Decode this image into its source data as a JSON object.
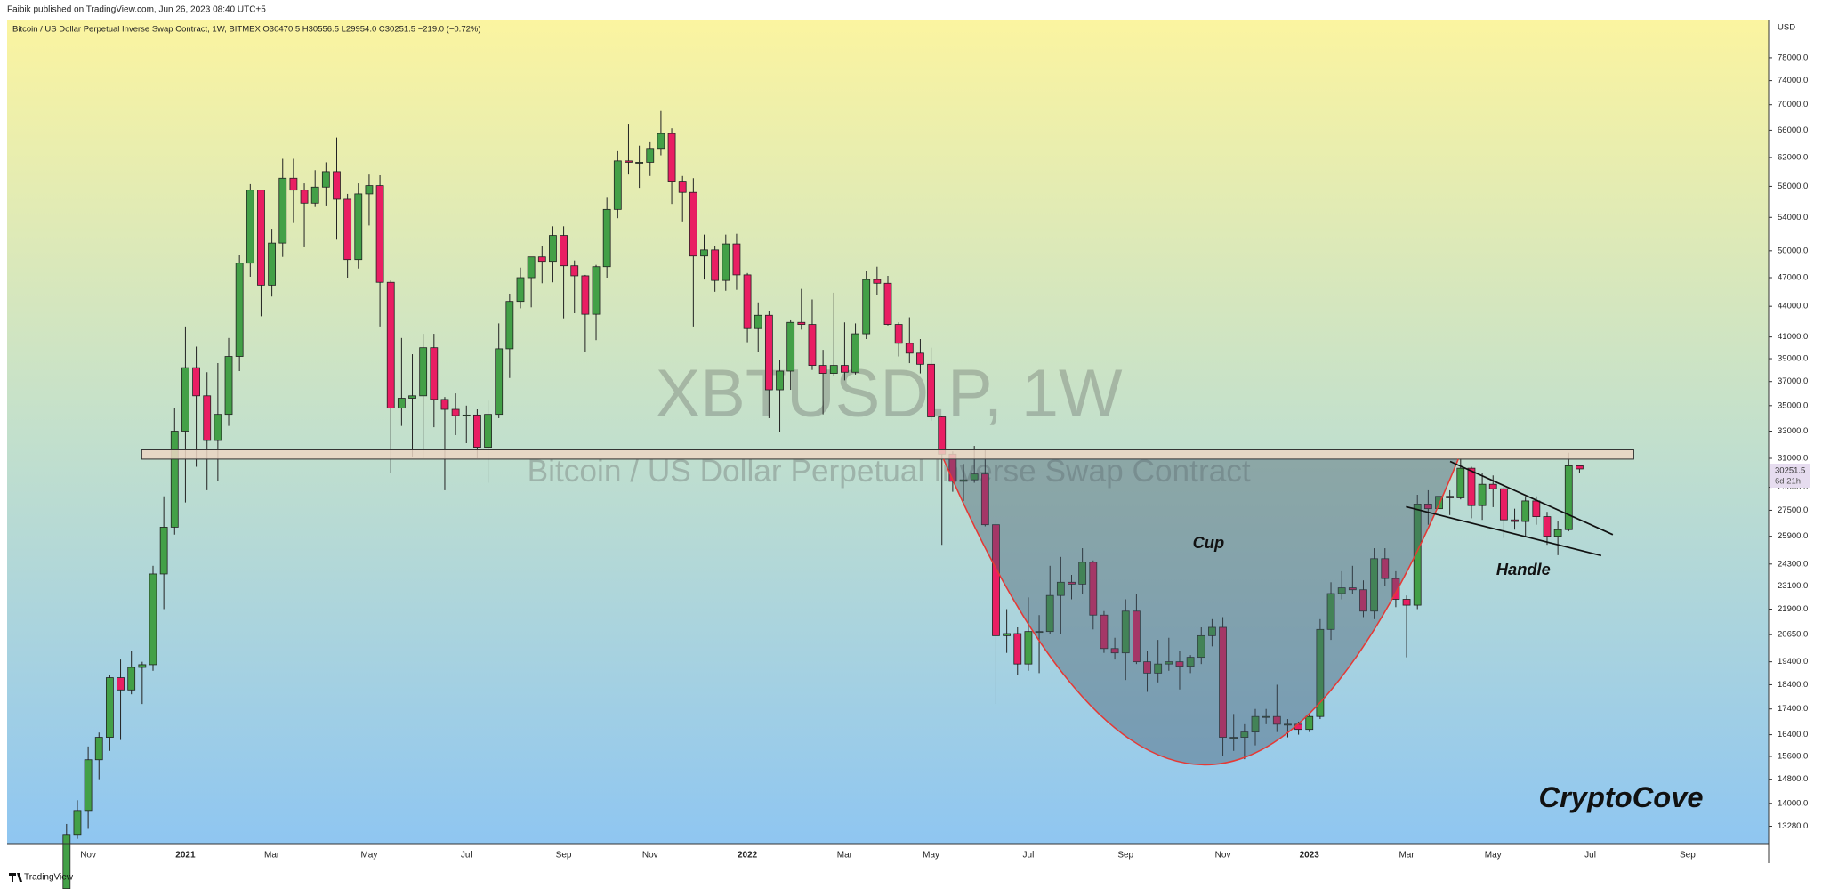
{
  "header": {
    "publisher": "Faibik published on TradingView.com, Jun 26, 2023 08:40 UTC+5",
    "brand": "TradingView"
  },
  "chart_data": {
    "type": "candlestick",
    "legend_text": "Bitcoin / US Dollar Perpetual Inverse Swap Contract, 1W, BITMEX  O30470.5  H30556.5  L29954.0  C30251.5  −219.0 (−0.72%)",
    "watermark": "XBTUSD.P, 1W",
    "watermark_subtitle": "Bitcoin / US Dollar Perpetual Inverse Swap Contract",
    "y_axis_label": "USD",
    "last_price": 30251.5,
    "countdown": "6d 21h",
    "annotations": {
      "cup": "Cup",
      "handle": "Handle",
      "signature": "CryptoCove"
    },
    "log_scale": true,
    "up_color": "#43a047",
    "down_color": "#e91e63",
    "ylim": [
      12760,
      85000
    ],
    "yticks": [
      {
        "value": 13280,
        "label": "13280.0"
      },
      {
        "value": 14000,
        "label": "14000.0"
      },
      {
        "value": 14800,
        "label": "14800.0"
      },
      {
        "value": 15600,
        "label": "15600.0"
      },
      {
        "value": 16400,
        "label": "16400.0"
      },
      {
        "value": 17400,
        "label": "17400.0"
      },
      {
        "value": 18400,
        "label": "18400.0"
      },
      {
        "value": 19400,
        "label": "19400.0"
      },
      {
        "value": 20650,
        "label": "20650.0"
      },
      {
        "value": 21900,
        "label": "21900.0"
      },
      {
        "value": 23100,
        "label": "23100.0"
      },
      {
        "value": 24300,
        "label": "24300.0"
      },
      {
        "value": 25900,
        "label": "25900.0"
      },
      {
        "value": 27500,
        "label": "27500.0"
      },
      {
        "value": 29000,
        "label": "29000.0"
      },
      {
        "value": 31000,
        "label": "31000.0"
      },
      {
        "value": 33000,
        "label": "33000.0"
      },
      {
        "value": 35000,
        "label": "35000.0"
      },
      {
        "value": 37000,
        "label": "37000.0"
      },
      {
        "value": 39000,
        "label": "39000.0"
      },
      {
        "value": 41000,
        "label": "41000.0"
      },
      {
        "value": 44000,
        "label": "44000.0"
      },
      {
        "value": 47000,
        "label": "47000.0"
      },
      {
        "value": 50000,
        "label": "50000.0"
      },
      {
        "value": 54000,
        "label": "54000.0"
      },
      {
        "value": 58000,
        "label": "58000.0"
      },
      {
        "value": 62000,
        "label": "62000.0"
      },
      {
        "value": 66000,
        "label": "66000.0"
      },
      {
        "value": 70000,
        "label": "70000.0"
      },
      {
        "value": 74000,
        "label": "74000.0"
      },
      {
        "value": 78000,
        "label": "78000.0"
      }
    ],
    "categories": [
      null,
      null,
      null,
      null,
      null,
      null,
      null,
      "Nov",
      null,
      null,
      null,
      null,
      null,
      null,
      null,
      null,
      "2021",
      null,
      null,
      null,
      null,
      null,
      null,
      null,
      "Mar",
      null,
      null,
      null,
      null,
      null,
      null,
      null,
      null,
      "May",
      null,
      null,
      null,
      null,
      null,
      null,
      null,
      null,
      "Jul",
      null,
      null,
      null,
      null,
      null,
      null,
      null,
      null,
      "Sep",
      null,
      null,
      null,
      null,
      null,
      null,
      null,
      "Nov",
      null,
      null,
      null,
      null,
      null,
      null,
      null,
      null,
      "2022",
      null,
      null,
      null,
      null,
      null,
      null,
      null,
      null,
      "Mar",
      null,
      null,
      null,
      null,
      null,
      null,
      null,
      "May",
      null,
      null,
      null,
      null,
      null,
      null,
      null,
      null,
      "Jul",
      null,
      null,
      null,
      null,
      null,
      null,
      null,
      null,
      "Sep",
      null,
      null,
      null,
      null,
      null,
      null,
      null,
      null,
      "Nov",
      null,
      null,
      null,
      null,
      null,
      null,
      null,
      "2023",
      null,
      null,
      null,
      null,
      null,
      null,
      null,
      null,
      "Mar",
      null,
      null,
      null,
      null,
      null,
      null,
      null,
      "May",
      null,
      null,
      null,
      null,
      null,
      null,
      null,
      null,
      "Jul",
      null,
      null,
      null,
      null,
      null,
      null,
      null,
      null,
      "Sep",
      null,
      null,
      null,
      null,
      null,
      null,
      null
    ],
    "open": [
      null,
      null,
      null,
      null,
      null,
      11500,
      13030,
      13770,
      15480,
      16300,
      18700,
      18180,
      19150,
      19270,
      23750,
      26450,
      33000,
      38200,
      35800,
      32300,
      34300,
      39200,
      48600,
      57500,
      46200,
      50900,
      59100,
      57500,
      55800,
      57900,
      60000,
      56300,
      49000,
      57000,
      58100,
      46500,
      34800,
      35600,
      35800,
      40000,
      35500,
      34700,
      34200,
      34250,
      31800,
      34300,
      39900,
      44500,
      47000,
      49300,
      48800,
      51800,
      48300,
      47200,
      43200,
      48200,
      55000,
      61500,
      61300,
      61300,
      63300,
      65500,
      58700,
      57200,
      49400,
      50100,
      46700,
      50800,
      47300,
      41800,
      43100,
      36300,
      37900,
      42400,
      42200,
      38400,
      37700,
      38400,
      37800,
      41300,
      46800,
      46400,
      42200,
      40400,
      39500,
      38500,
      34100,
      31300,
      29400,
      29500,
      29900,
      26600,
      20600,
      20700,
      19300,
      20800,
      20800,
      22600,
      23300,
      23200,
      24400,
      21600,
      20000,
      19800,
      21800,
      19400,
      18900,
      19300,
      19400,
      19200,
      19600,
      20600,
      21000,
      16300,
      16300,
      16500,
      17100,
      17100,
      16800,
      16800,
      16600,
      17100,
      20900,
      22700,
      23000,
      22900,
      21800,
      24600,
      23500,
      22400,
      22100,
      27900,
      27600,
      28400,
      28300,
      30300,
      27800,
      29200,
      28900,
      26900,
      26800,
      28100,
      27100,
      25900,
      26300,
      30470.5,
      null,
      null,
      null,
      null,
      null,
      null,
      null,
      null,
      null,
      null,
      null,
      null,
      null,
      null,
      null,
      null,
      null
    ],
    "high": [
      null,
      null,
      null,
      null,
      null,
      13350,
      14100,
      15960,
      16480,
      18800,
      19500,
      19900,
      19400,
      24200,
      28400,
      34800,
      42000,
      40100,
      37800,
      38600,
      40900,
      49500,
      58300,
      57500,
      52600,
      61800,
      61800,
      58400,
      60200,
      61300,
      64900,
      57000,
      58400,
      59600,
      59500,
      46700,
      40900,
      39400,
      41300,
      41300,
      35700,
      36000,
      35000,
      34700,
      35400,
      42300,
      45300,
      48100,
      49300,
      50500,
      52900,
      52900,
      48900,
      47300,
      48400,
      56600,
      62900,
      67000,
      63700,
      64200,
      69000,
      66300,
      59400,
      59100,
      51900,
      50600,
      51900,
      52000,
      47500,
      44400,
      43500,
      38900,
      42600,
      45800,
      44700,
      39800,
      45400,
      42400,
      42300,
      47700,
      48200,
      47200,
      42400,
      42900,
      40800,
      40000,
      34200,
      31500,
      30600,
      31900,
      31700,
      26900,
      21900,
      21000,
      22500,
      21600,
      24200,
      24700,
      23700,
      25200,
      24500,
      21800,
      20500,
      22400,
      22700,
      19900,
      20400,
      20500,
      19900,
      19700,
      21000,
      21400,
      21500,
      17200,
      16800,
      17400,
      17400,
      18400,
      17000,
      16900,
      17200,
      21400,
      23300,
      23900,
      24200,
      23400,
      25200,
      25200,
      23900,
      22600,
      28500,
      28800,
      29200,
      28800,
      31000,
      30400,
      30000,
      29800,
      29200,
      27600,
      28400,
      28400,
      27400,
      26800,
      31400,
      30556.5,
      null,
      null,
      null,
      null,
      null,
      null,
      null,
      null,
      null,
      null,
      null,
      null,
      null,
      null,
      null,
      null,
      null
    ],
    "low": [
      null,
      null,
      null,
      null,
      null,
      11400,
      12900,
      13200,
      14800,
      15800,
      16200,
      18000,
      17600,
      19000,
      21900,
      26000,
      28000,
      30400,
      28800,
      29400,
      33400,
      37900,
      47100,
      43000,
      45000,
      49300,
      53300,
      50400,
      55300,
      55500,
      51300,
      47000,
      48000,
      53000,
      42000,
      30000,
      33400,
      31100,
      31000,
      33300,
      28800,
      32700,
      32100,
      31000,
      29300,
      34000,
      37300,
      43800,
      43900,
      46400,
      46500,
      42800,
      43300,
      39600,
      40700,
      47000,
      53900,
      59600,
      57800,
      59400,
      62300,
      55700,
      53500,
      42000,
      46800,
      45500,
      45600,
      45700,
      40500,
      39600,
      34000,
      32900,
      36300,
      41700,
      38000,
      34300,
      37500,
      37100,
      37600,
      40800,
      45200,
      42100,
      39200,
      38600,
      37700,
      33800,
      25400,
      28700,
      28100,
      29300,
      26500,
      17600,
      19800,
      18800,
      19000,
      18900,
      20700,
      20700,
      22400,
      22700,
      20900,
      19800,
      19500,
      18600,
      19300,
      18100,
      18500,
      19000,
      18200,
      18900,
      19300,
      20100,
      15600,
      15800,
      15500,
      16000,
      16800,
      16500,
      16300,
      16400,
      16500,
      17000,
      20400,
      22400,
      22700,
      21500,
      21400,
      23100,
      22000,
      19600,
      21900,
      26600,
      26600,
      27200,
      28200,
      27000,
      26900,
      27700,
      25800,
      26300,
      25900,
      26600,
      25400,
      24800,
      26200,
      29954,
      null,
      null,
      null,
      null,
      null,
      null,
      null,
      null,
      null,
      null,
      null,
      null,
      null,
      null,
      null,
      null,
      null
    ],
    "close": [
      null,
      null,
      null,
      null,
      null,
      13030,
      13770,
      15480,
      16300,
      18700,
      18180,
      19150,
      19270,
      23750,
      26450,
      33000,
      38200,
      35800,
      32300,
      34300,
      39200,
      48600,
      57500,
      46200,
      50900,
      59100,
      57500,
      55800,
      57900,
      60000,
      56300,
      49000,
      57000,
      58100,
      46500,
      34800,
      35600,
      35800,
      40000,
      35500,
      34700,
      34200,
      34250,
      31800,
      34300,
      39900,
      44500,
      47000,
      49300,
      48800,
      51800,
      48300,
      47200,
      43200,
      48200,
      55000,
      61500,
      61300,
      61300,
      63300,
      65500,
      58700,
      57200,
      49400,
      50100,
      46700,
      50800,
      47300,
      41800,
      43100,
      36300,
      37900,
      42400,
      42200,
      38400,
      37700,
      38400,
      37800,
      41300,
      46800,
      46400,
      42200,
      40400,
      39500,
      38500,
      34100,
      31300,
      29400,
      29500,
      29900,
      26600,
      20600,
      20700,
      19300,
      20800,
      20800,
      22600,
      23300,
      23200,
      24400,
      21600,
      20000,
      19800,
      21800,
      19400,
      18900,
      19300,
      19400,
      19200,
      19600,
      20600,
      21000,
      16300,
      16300,
      16500,
      17100,
      17100,
      16800,
      16800,
      16600,
      17100,
      20900,
      22700,
      23000,
      22900,
      21800,
      24600,
      23500,
      22400,
      22100,
      27900,
      27600,
      28400,
      28300,
      30300,
      27800,
      29200,
      28900,
      26900,
      26800,
      28100,
      27100,
      25900,
      26300,
      30470.5,
      30251.5,
      null,
      null,
      null,
      null,
      null,
      null,
      null,
      null,
      null,
      null,
      null,
      null,
      null,
      null,
      null,
      null,
      null
    ]
  }
}
